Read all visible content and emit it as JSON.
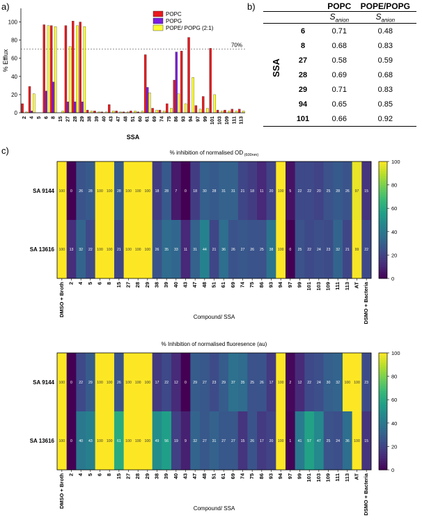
{
  "panels": {
    "a": "a)",
    "b": "b)",
    "c": "c)"
  },
  "chart_data": [
    {
      "type": "bar",
      "xlabel": "SSA",
      "ylabel": "% Efflux",
      "ylim": [
        0,
        115
      ],
      "yticks": [
        0,
        20,
        40,
        60,
        80,
        100
      ],
      "reference_line": {
        "value": 70,
        "label": "70%"
      },
      "legend_position": "top-right",
      "categories": [
        "2",
        "4",
        "5",
        "6",
        "8",
        "15",
        "27",
        "28",
        "29",
        "38",
        "39",
        "40",
        "43",
        "47",
        "48",
        "51",
        "60",
        "61",
        "69",
        "74",
        "75",
        "86",
        "93",
        "94",
        "97",
        "99",
        "101",
        "103",
        "109",
        "111",
        "113"
      ],
      "series": [
        {
          "name": "POPC",
          "color": "#e8191e",
          "values": [
            10,
            29,
            0,
            97,
            96,
            0,
            96,
            101,
            100,
            3,
            2,
            1,
            9,
            2,
            1,
            2,
            1,
            64,
            5,
            3,
            10,
            36,
            68,
            83,
            8,
            18,
            71,
            3,
            3,
            4,
            4
          ]
        },
        {
          "name": "POPG",
          "color": "#7b1fe0",
          "values": [
            0,
            2,
            0,
            24,
            34,
            0,
            12,
            12,
            12,
            0,
            0,
            0,
            0,
            0,
            0,
            0,
            0,
            28,
            0,
            0,
            0,
            67,
            0,
            0,
            0,
            0,
            0,
            0,
            0,
            0,
            0
          ]
        },
        {
          "name": "POPE/ POPG (2:1)",
          "color": "#ffff33",
          "values": [
            1,
            21,
            0,
            96,
            95,
            2,
            73,
            96,
            95,
            2,
            1,
            1,
            2,
            1,
            1,
            2,
            2,
            22,
            3,
            2,
            5,
            21,
            10,
            39,
            4,
            5,
            20,
            2,
            2,
            2,
            2
          ]
        }
      ]
    },
    {
      "type": "heatmap",
      "title": "% inhibition of normalised OD",
      "title_sub": "(600nm)",
      "xlabel": "Compound/ SSA",
      "columns": [
        "DMSO + Broth",
        "2",
        "4",
        "5",
        "6",
        "8",
        "15",
        "27",
        "28",
        "29",
        "38",
        "39",
        "40",
        "43",
        "47",
        "48",
        "51",
        "61",
        "69",
        "74",
        "75",
        "86",
        "93",
        "94",
        "97",
        "99",
        "101",
        "103",
        "109",
        "111",
        "113",
        "AT",
        "DSMO + Bacteria"
      ],
      "rows": [
        {
          "name": "SA 9144",
          "values": [
            100,
            0,
            26,
            28,
            100,
            100,
            28,
            100,
            100,
            100,
            18,
            28,
            7,
            0,
            18,
            30,
            28,
            31,
            31,
            21,
            18,
            11,
            20,
            100,
            5,
            22,
            22,
            20,
            25,
            28,
            26,
            97,
            15
          ]
        },
        {
          "name": "SA 13616",
          "values": [
            100,
            13,
            32,
            22,
            100,
            100,
            21,
            100,
            100,
            100,
            26,
            35,
            33,
            11,
            31,
            44,
            21,
            36,
            26,
            27,
            26,
            25,
            38,
            100,
            0,
            25,
            22,
            24,
            23,
            32,
            21,
            99,
            22
          ]
        }
      ],
      "colorbar_ticks": [
        0,
        20,
        40,
        60,
        80,
        100
      ]
    },
    {
      "type": "heatmap",
      "title": "% Inhibition of normalised fluoresence (au)",
      "xlabel": "Compound/ SSA",
      "columns": [
        "DMSO + Broth",
        "2",
        "4",
        "5",
        "6",
        "8",
        "15",
        "27",
        "28",
        "29",
        "38",
        "39",
        "40",
        "43",
        "47",
        "48",
        "51",
        "61",
        "69",
        "74",
        "75",
        "86",
        "93",
        "94",
        "97",
        "99",
        "101",
        "103",
        "109",
        "111",
        "113",
        "AT",
        "DSMO + Bacteria"
      ],
      "rows": [
        {
          "name": "SA 9144",
          "values": [
            100,
            0,
            22,
            29,
            100,
            100,
            26,
            100,
            100,
            100,
            17,
            22,
            12,
            0,
            29,
            27,
            23,
            29,
            37,
            35,
            25,
            26,
            17,
            100,
            2,
            12,
            22,
            24,
            30,
            32,
            100,
            100,
            23
          ]
        },
        {
          "name": "SA 13616",
          "values": [
            100,
            0,
            40,
            43,
            100,
            100,
            61,
            100,
            100,
            100,
            49,
            56,
            19,
            9,
            32,
            27,
            31,
            27,
            27,
            15,
            26,
            17,
            20,
            100,
            1,
            41,
            57,
            47,
            25,
            24,
            36,
            100,
            15
          ]
        }
      ],
      "colorbar_ticks": [
        0,
        20,
        40,
        60,
        80,
        100
      ]
    }
  ],
  "table": {
    "headers": [
      "POPC",
      "POPE/POPG"
    ],
    "subheader": "S",
    "subheader_sub": "anion",
    "row_group": "SSA",
    "rows": [
      {
        "label": "6",
        "popc": "0.71",
        "popepopg": "0.48"
      },
      {
        "label": "8",
        "popc": "0.68",
        "popepopg": "0.83"
      },
      {
        "label": "27",
        "popc": "0.58",
        "popepopg": "0.59"
      },
      {
        "label": "28",
        "popc": "0.69",
        "popepopg": "0.68"
      },
      {
        "label": "29",
        "popc": "0.71",
        "popepopg": "0.83"
      },
      {
        "label": "94",
        "popc": "0.65",
        "popepopg": "0.85"
      },
      {
        "label": "101",
        "popc": "0.66",
        "popepopg": "0.92"
      }
    ]
  }
}
